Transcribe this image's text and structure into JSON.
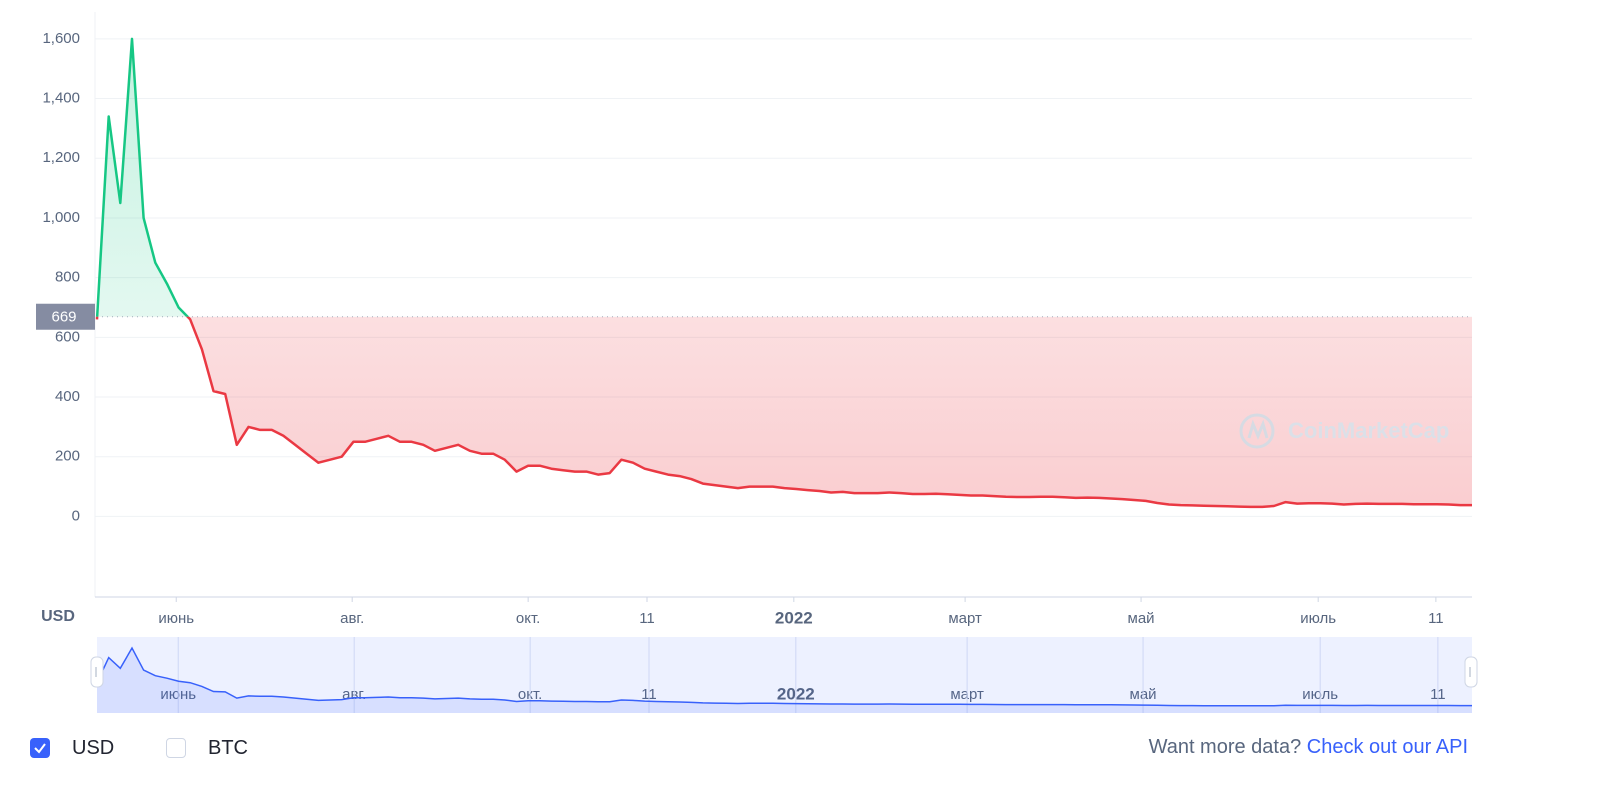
{
  "chart_data": {
    "type": "line",
    "y_label": "USD",
    "watermark": "CoinMarketCap",
    "baseline": 669,
    "up_color": "#16c784",
    "down_color": "#ea3943",
    "navigator_color": "#3861fb",
    "grid": true,
    "xlim": [
      0,
      118
    ],
    "xticks": [
      {
        "value": 6.8,
        "label": "июнь"
      },
      {
        "value": 21.9,
        "label": "авг."
      },
      {
        "value": 37,
        "label": "окт."
      },
      {
        "value": 47.2,
        "label": "11"
      },
      {
        "value": 59.8,
        "label": "2022",
        "bold": true
      },
      {
        "value": 74.5,
        "label": "март"
      },
      {
        "value": 89.6,
        "label": "май"
      },
      {
        "value": 104.8,
        "label": "июль"
      },
      {
        "value": 114.9,
        "label": "11"
      }
    ],
    "ylim": [
      -270,
      1690
    ],
    "yticks": [
      0,
      200,
      400,
      600,
      800,
      {
        "value": 1000,
        "label": "1,000"
      },
      {
        "value": 1200,
        "label": "1,200"
      },
      {
        "value": 1400,
        "label": "1,400"
      },
      {
        "value": 1600,
        "label": "1,600"
      }
    ],
    "series": [
      {
        "name": "USD",
        "values": [
          660,
          1340,
          1050,
          1600,
          1000,
          850,
          780,
          700,
          660,
          560,
          420,
          410,
          240,
          300,
          290,
          290,
          270,
          240,
          210,
          180,
          190,
          200,
          250,
          250,
          260,
          270,
          250,
          250,
          240,
          220,
          230,
          240,
          220,
          210,
          210,
          190,
          150,
          170,
          170,
          160,
          155,
          150,
          150,
          140,
          145,
          190,
          180,
          160,
          150,
          140,
          135,
          125,
          110,
          105,
          100,
          95,
          100,
          100,
          100,
          95,
          92,
          88,
          85,
          80,
          82,
          78,
          78,
          78,
          80,
          78,
          75,
          75,
          76,
          74,
          72,
          70,
          70,
          68,
          66,
          65,
          65,
          66,
          66,
          64,
          62,
          63,
          62,
          60,
          58,
          55,
          52,
          45,
          40,
          38,
          37,
          36,
          35,
          34,
          33,
          32,
          32,
          35,
          48,
          43,
          44,
          44,
          43,
          40,
          42,
          43,
          42,
          42,
          42,
          41,
          41,
          41,
          40,
          38,
          38
        ]
      }
    ],
    "legend": [
      {
        "label": "USD",
        "checked": true
      },
      {
        "label": "BTC",
        "checked": false
      }
    ],
    "footer": {
      "question": "Want more data?",
      "link": "Check out our API"
    }
  }
}
